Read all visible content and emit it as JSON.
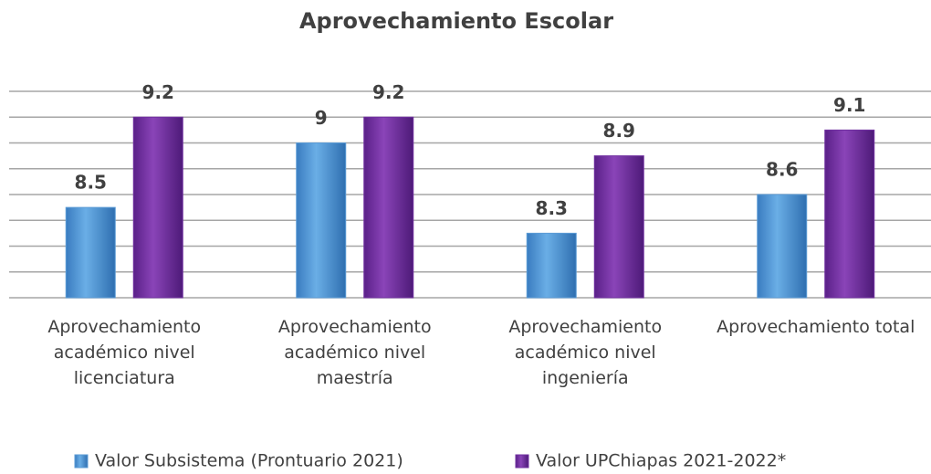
{
  "chart_data": {
    "type": "bar",
    "title": "Aprovechamiento Escolar",
    "categories": [
      "Aprovechamiento académico nivel licenciatura",
      "Aprovechamiento académico nivel maestría",
      "Aprovechamiento académico nivel ingeniería",
      "Aprovechamiento total"
    ],
    "series": [
      {
        "name": "Valor Subsistema (Prontuario 2021)",
        "color": "#5b9bd5",
        "values": [
          8.5,
          9,
          8.3,
          8.6
        ]
      },
      {
        "name": "Valor UPChiapas 2021-2022*",
        "color": "#7030a0",
        "values": [
          9.2,
          9.2,
          8.9,
          9.1
        ]
      }
    ],
    "ylim": [
      7.8,
      9.4
    ],
    "yticks": [
      7.8,
      8,
      8.2,
      8.4,
      8.6,
      8.8,
      9,
      9.2,
      9.4
    ],
    "grid": true,
    "legend": "bottom"
  }
}
